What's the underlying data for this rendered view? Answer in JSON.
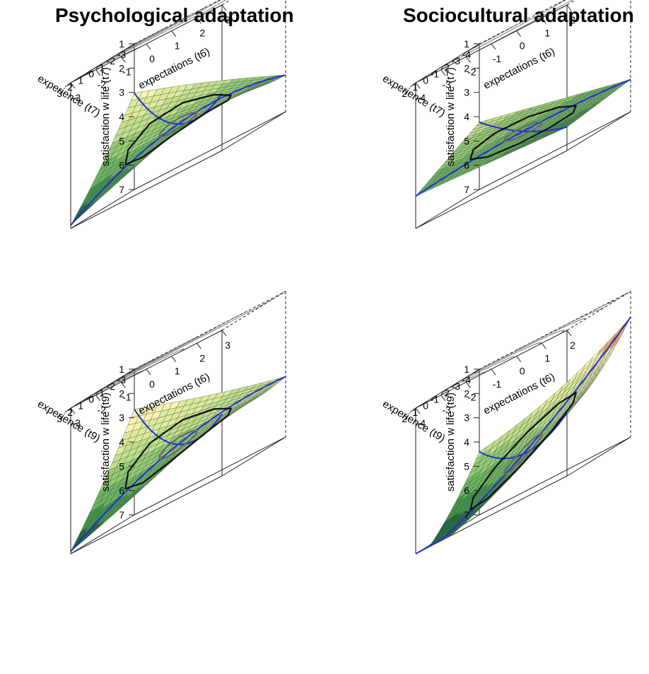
{
  "titles": {
    "left": "Psychological adaptation",
    "right": "Sociocultural adaptation"
  },
  "chart_data": [
    {
      "type": "surface",
      "title": "Psychological adaptation",
      "zlabel": "satisfaction w life (t7)",
      "xlabel": "expectations (t6)",
      "ylabel": "experience (t7)",
      "zlim": [
        1,
        7
      ],
      "xlim": [
        -3,
        3
      ],
      "ylim": [
        -3,
        3
      ],
      "z_ticks": [
        "1",
        "2",
        "3",
        "4",
        "5",
        "6",
        "7"
      ],
      "x_ticks": [
        "-3",
        "-2",
        "-1",
        "0",
        "1",
        "2",
        "3"
      ],
      "y_ticks": [
        "-3",
        "-2",
        "-1",
        "0",
        "1",
        "2",
        "3"
      ],
      "surface_coeffs": {
        "b0": 5.1,
        "bx": 0.02,
        "by": 0.25,
        "bx2": 0.01,
        "bxy": -0.13,
        "by2": -0.02
      },
      "color_scheme": [
        "#c0382b",
        "#e8774c",
        "#f7b36a",
        "#f9f4b0",
        "#dcec9a",
        "#bfe08a",
        "#94cc74",
        "#6bb660",
        "#3f9648",
        "#1b6b3a"
      ]
    },
    {
      "type": "surface",
      "title": "Sociocultural adaptation",
      "zlabel": "satisfaction w life (t7)",
      "xlabel": "expectations (t6)",
      "ylabel": "experience (t7)",
      "zlim": [
        1,
        7
      ],
      "xlim": [
        -4,
        2
      ],
      "ylim": [
        -4,
        2
      ],
      "z_ticks": [
        "1",
        "2",
        "3",
        "4",
        "5",
        "6",
        "7"
      ],
      "x_ticks": [
        "-4",
        "-3",
        "-2",
        "-1",
        "0",
        "1",
        "2"
      ],
      "y_ticks": [
        "-4",
        "-3",
        "-2",
        "-1",
        "0",
        "1",
        "2"
      ],
      "surface_coeffs": {
        "b0": 5.4,
        "bx": 0.15,
        "by": 0.15,
        "bx2": 0.0,
        "bxy": -0.03,
        "by2": 0.0
      },
      "color_scheme": [
        "#c0382b",
        "#e8774c",
        "#f7b36a",
        "#f9f4b0",
        "#dcec9a",
        "#bfe08a",
        "#94cc74",
        "#6bb660",
        "#3f9648",
        "#1b6b3a"
      ]
    },
    {
      "type": "surface",
      "title": "",
      "zlabel": "satisfaction w life (t9)",
      "xlabel": "expectations (t6)",
      "ylabel": "experience (t9)",
      "zlim": [
        1,
        7
      ],
      "xlim": [
        -3,
        3
      ],
      "ylim": [
        -3,
        3
      ],
      "z_ticks": [
        "1",
        "2",
        "3",
        "4",
        "5",
        "6",
        "7"
      ],
      "x_ticks": [
        "-3",
        "-2",
        "-1",
        "0",
        "1",
        "2",
        "3"
      ],
      "y_ticks": [
        "-3",
        "-2",
        "-1",
        "0",
        "1",
        "2",
        "3"
      ],
      "surface_coeffs": {
        "b0": 4.9,
        "bx": -0.05,
        "by": 0.35,
        "bx2": -0.01,
        "bxy": -0.12,
        "by2": -0.02
      },
      "color_scheme": [
        "#c0382b",
        "#e8774c",
        "#f7b36a",
        "#f9f4b0",
        "#dcec9a",
        "#bfe08a",
        "#94cc74",
        "#6bb660",
        "#3f9648",
        "#1b6b3a"
      ]
    },
    {
      "type": "surface",
      "title": "",
      "zlabel": "satisfaction w life (t9)",
      "xlabel": "expectations (t6)",
      "ylabel": "experience (t9)",
      "zlim": [
        1,
        7
      ],
      "xlim": [
        -4,
        2
      ],
      "ylim": [
        -4,
        2
      ],
      "z_ticks": [
        "1",
        "2",
        "3",
        "4",
        "5",
        "6",
        "7"
      ],
      "x_ticks": [
        "-4",
        "-3",
        "-2",
        "-1",
        "0",
        "1",
        "2"
      ],
      "y_ticks": [
        "-4",
        "-3",
        "-2",
        "-1",
        "0",
        "1",
        "2"
      ],
      "surface_coeffs": {
        "b0": 5.3,
        "bx": -0.45,
        "by": 0.45,
        "bx2": -0.04,
        "bxy": -0.02,
        "by2": -0.04
      },
      "color_scheme": [
        "#c0382b",
        "#e8774c",
        "#f7b36a",
        "#f9f4b0",
        "#dcec9a",
        "#bfe08a",
        "#94cc74",
        "#6bb660",
        "#3f9648",
        "#1b6b3a"
      ]
    }
  ]
}
